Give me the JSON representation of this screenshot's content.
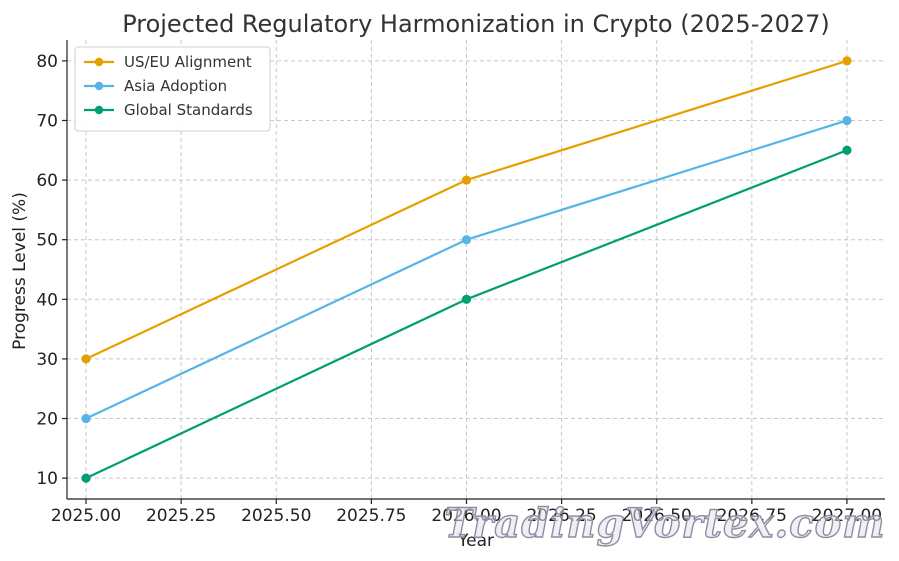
{
  "chart_data": {
    "type": "line",
    "title": "Projected Regulatory Harmonization in Crypto (2025-2027)",
    "xlabel": "Year",
    "ylabel": "Progress Level (%)",
    "xlim": [
      2024.95,
      2027.1
    ],
    "ylim": [
      6.5,
      83.5
    ],
    "x_ticks": [
      "2025.00",
      "2025.25",
      "2025.50",
      "2025.75",
      "2026.00",
      "2026.25",
      "2026.50",
      "2026.75",
      "2027.00"
    ],
    "y_ticks": [
      "10",
      "20",
      "30",
      "40",
      "50",
      "60",
      "70",
      "80"
    ],
    "grid": true,
    "legend_position": "top-left",
    "x": [
      2025,
      2026,
      2027
    ],
    "series": [
      {
        "name": "US/EU Alignment",
        "values": [
          30,
          60,
          80
        ],
        "color": "#E69F00"
      },
      {
        "name": "Asia Adoption",
        "values": [
          20,
          50,
          70
        ],
        "color": "#56B4E9"
      },
      {
        "name": "Global Standards",
        "values": [
          10,
          40,
          65
        ],
        "color": "#009E73"
      }
    ]
  },
  "watermark": "TradingVortex.com"
}
